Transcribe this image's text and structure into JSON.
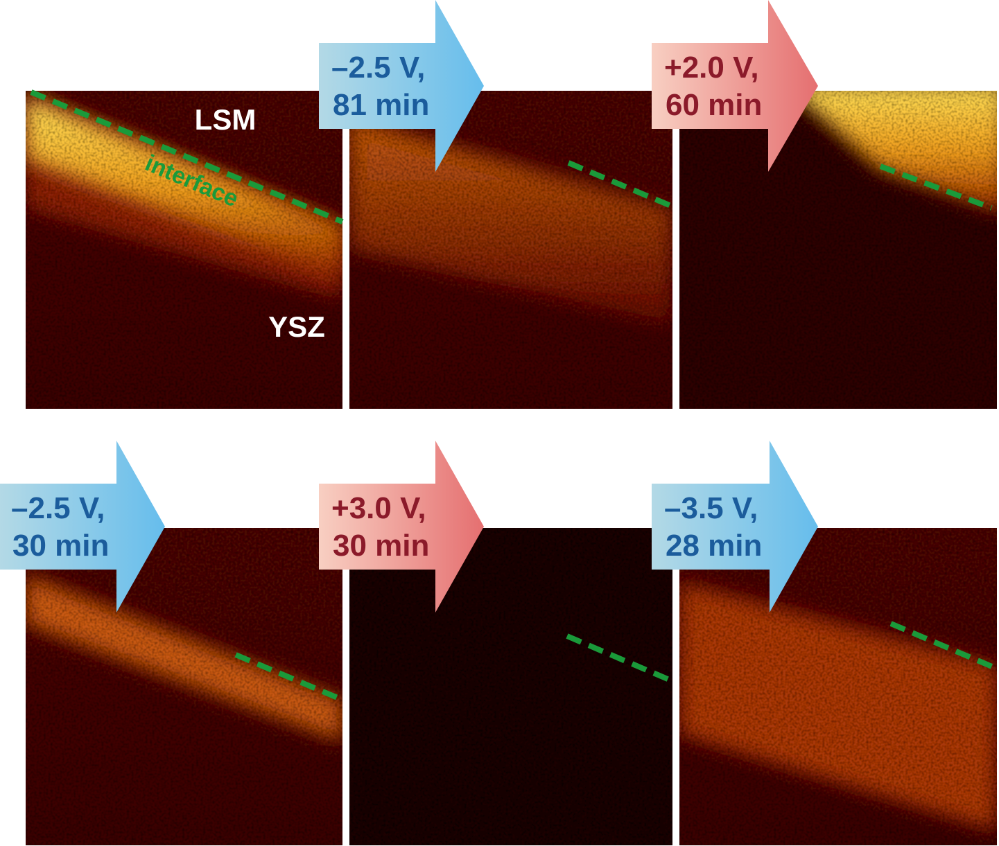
{
  "labels": {
    "top": "LSM",
    "interface": "interface",
    "bottom": "YSZ"
  },
  "arrows": [
    {
      "lines": [
        "–2.5 V,",
        "81 min"
      ]
    },
    {
      "lines": [
        "+2.0 V,",
        "60 min"
      ]
    },
    {
      "lines": [
        "–2.5 V,",
        "30 min"
      ]
    },
    {
      "lines": [
        "+3.0 V,",
        "30 min"
      ]
    },
    {
      "lines": [
        "–3.5 V,",
        "28 min"
      ]
    }
  ]
}
